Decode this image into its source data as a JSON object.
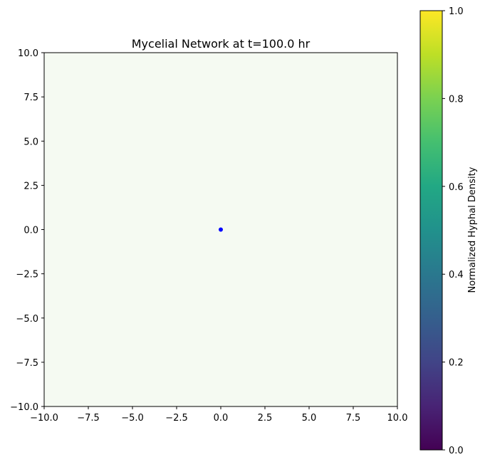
{
  "chart_data": {
    "type": "heatmap",
    "title": "Mycelial Network at t=100.0 hr",
    "xlabel": "",
    "ylabel": "",
    "xlim": [
      -10.0,
      10.0
    ],
    "ylim": [
      -10.0,
      10.0
    ],
    "x_ticks": [
      "−10.0",
      "−7.5",
      "−5.0",
      "−2.5",
      "0.0",
      "2.5",
      "5.0",
      "7.5",
      "10.0"
    ],
    "y_ticks": [
      "−10.0",
      "−7.5",
      "−5.0",
      "−2.5",
      "0.0",
      "2.5",
      "5.0",
      "7.5",
      "10.0"
    ],
    "x_tick_values": [
      -10,
      -7.5,
      -5,
      -2.5,
      0,
      2.5,
      5,
      7.5,
      10
    ],
    "y_tick_values": [
      -10,
      -7.5,
      -5,
      -2.5,
      0,
      2.5,
      5,
      7.5,
      10
    ],
    "grid": false,
    "field": {
      "uniform_value": 0.0,
      "color": "#f5faf2"
    },
    "points": [
      {
        "x": 0.0,
        "y": 0.0,
        "color": "#0000ff"
      }
    ],
    "colorbar": {
      "label": "Normalized Hyphal Density",
      "colormap": "viridis",
      "range": [
        0.0,
        1.0
      ],
      "ticks": [
        "0.0",
        "0.2",
        "0.4",
        "0.6",
        "0.8",
        "1.0"
      ],
      "tick_values": [
        0.0,
        0.2,
        0.4,
        0.6,
        0.8,
        1.0
      ]
    }
  }
}
